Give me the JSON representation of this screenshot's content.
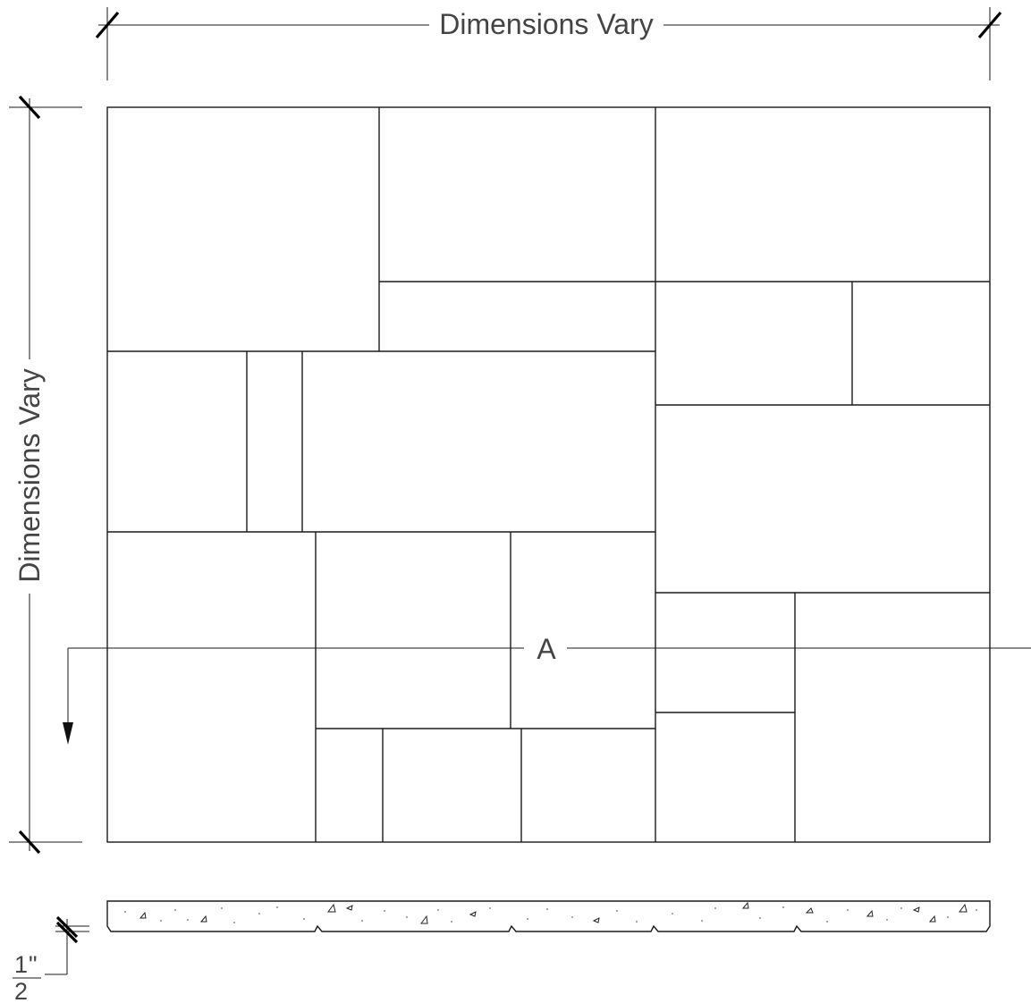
{
  "dimension_top_label": "Dimensions Vary",
  "dimension_left_label": "Dimensions Vary",
  "section_marker_label": "A",
  "thickness": {
    "numerator": "1",
    "inch_mark": "\"",
    "denominator": "2"
  }
}
